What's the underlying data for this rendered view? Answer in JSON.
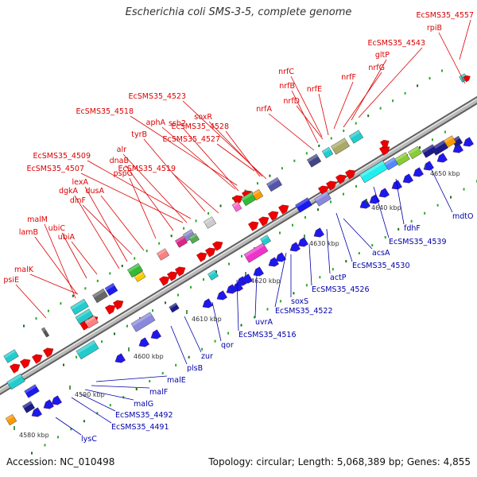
{
  "title": "Escherichia coli SMS-3-5, complete genome",
  "footer": {
    "accession": "Accession: NC_010498",
    "summary": "Topology: circular; Length: 5,068,389 bp; Genes: 4,855"
  },
  "colors": {
    "top_label": "#dd0000",
    "bottom_label": "#0000aa",
    "backbone": "#999999",
    "tick": "#229922"
  },
  "top_labels": [
    {
      "text": "EcSMS35_4557"
    },
    {
      "text": "rpiB"
    },
    {
      "text": "EcSMS35_4543"
    },
    {
      "text": "gltP"
    },
    {
      "text": "nrfG"
    },
    {
      "text": "nrfF"
    },
    {
      "text": "nrfC"
    },
    {
      "text": "nrfB"
    },
    {
      "text": "nrfD"
    },
    {
      "text": "nrfE"
    },
    {
      "text": "nrfA"
    },
    {
      "text": "EcSMS35_4523"
    },
    {
      "text": "soxR"
    },
    {
      "text": "EcSMS35_4518"
    },
    {
      "text": "aphA"
    },
    {
      "text": "ssb2"
    },
    {
      "text": "EcSMS35_4528"
    },
    {
      "text": "tyrB"
    },
    {
      "text": "EcSMS35_4527"
    },
    {
      "text": "alr"
    },
    {
      "text": "EcSMS35_4509"
    },
    {
      "text": "dnaB"
    },
    {
      "text": "EcSMS35_4507"
    },
    {
      "text": "pspG"
    },
    {
      "text": "EcSMS35_4519"
    },
    {
      "text": "lexA"
    },
    {
      "text": "dusA"
    },
    {
      "text": "dgkA"
    },
    {
      "text": "dinF"
    },
    {
      "text": "malM"
    },
    {
      "text": "ubiC"
    },
    {
      "text": "lamB"
    },
    {
      "text": "ubiA"
    },
    {
      "text": "malK"
    },
    {
      "text": "psiE"
    }
  ],
  "bottom_labels": [
    {
      "text": "mdtO"
    },
    {
      "text": "fdhF"
    },
    {
      "text": "EcSMS35_4539"
    },
    {
      "text": "acsA"
    },
    {
      "text": "EcSMS35_4530"
    },
    {
      "text": "actP"
    },
    {
      "text": "EcSMS35_4526"
    },
    {
      "text": "soxS"
    },
    {
      "text": "EcSMS35_4522"
    },
    {
      "text": "uvrA"
    },
    {
      "text": "EcSMS35_4516"
    },
    {
      "text": "qor"
    },
    {
      "text": "zur"
    },
    {
      "text": "plsB"
    },
    {
      "text": "malE"
    },
    {
      "text": "malF"
    },
    {
      "text": "malG"
    },
    {
      "text": "EcSMS35_4492"
    },
    {
      "text": "EcSMS35_4491"
    },
    {
      "text": "lysC"
    }
  ],
  "ticks": [
    {
      "text": "4580 kbp"
    },
    {
      "text": "4590 kbp"
    },
    {
      "text": "4600 kbp"
    },
    {
      "text": "4610 kbp"
    },
    {
      "text": "4620 kbp"
    },
    {
      "text": "4630 kbp"
    },
    {
      "text": "4640 kbp"
    },
    {
      "text": "4650 kbp"
    }
  ]
}
